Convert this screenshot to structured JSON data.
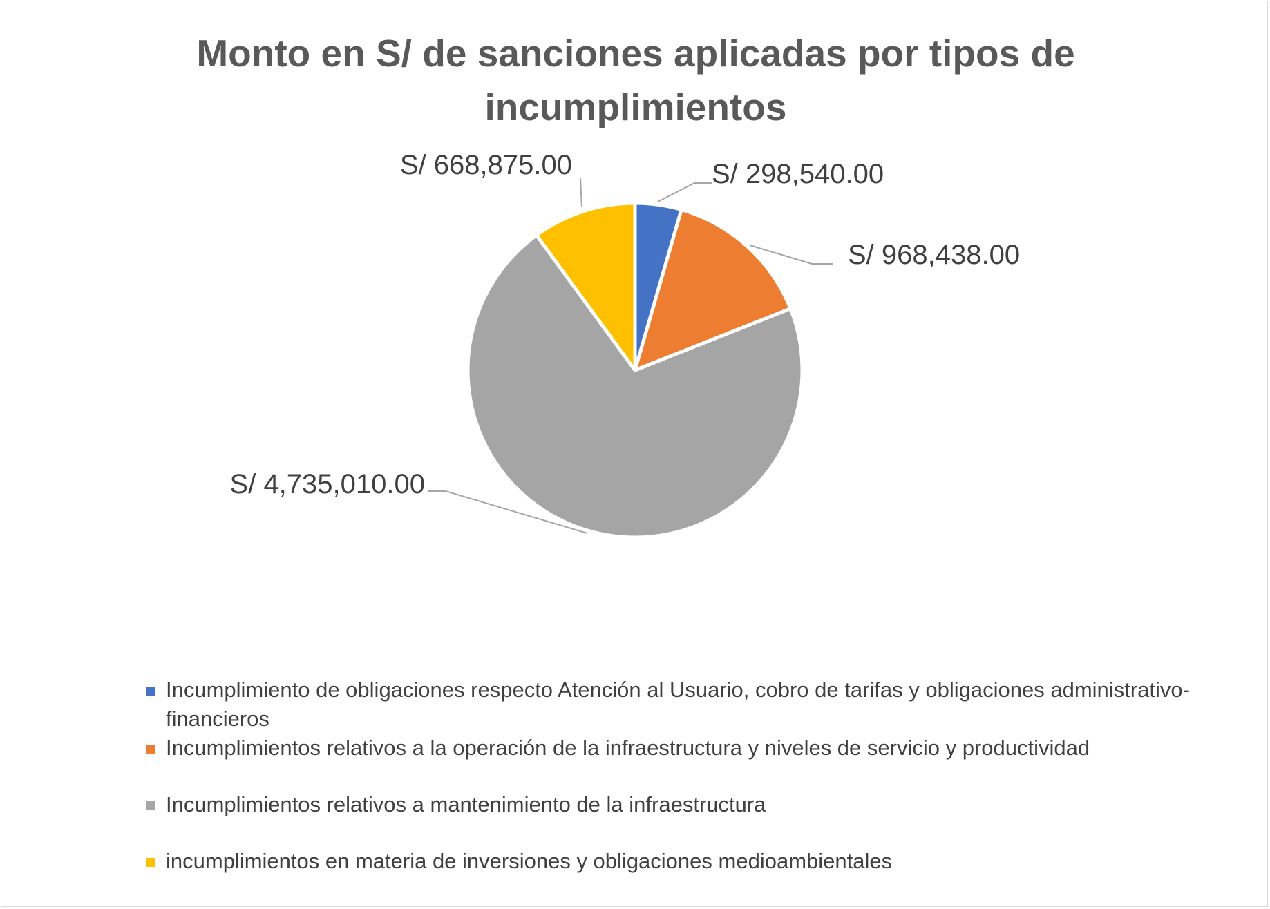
{
  "chart_data": {
    "type": "pie",
    "title": "Monto en S/ de sanciones aplicadas por tipos de incumplimientos",
    "slices": [
      {
        "label": "Incumplimiento de obligaciones respecto Atención al Usuario, cobro de tarifas y obligaciones administrativo-financieros",
        "value": 298540.0,
        "data_label": "S/ 298,540.00",
        "color": "#4472c4"
      },
      {
        "label": "Incumplimientos relativos a la operación de la infraestructura y niveles de servicio y productividad",
        "value": 968438.0,
        "data_label": "S/ 968,438.00",
        "color": "#ed7d31"
      },
      {
        "label": "Incumplimientos relativos a mantenimiento de la infraestructura",
        "value": 4735010.0,
        "data_label": "S/ 4,735,010.00",
        "color": "#a5a5a5"
      },
      {
        "label": "incumplimientos en materia de inversiones y obligaciones medioambientales",
        "value": 668875.0,
        "data_label": "S/ 668,875.00",
        "color": "#ffc000"
      }
    ],
    "legend_position": "bottom"
  }
}
